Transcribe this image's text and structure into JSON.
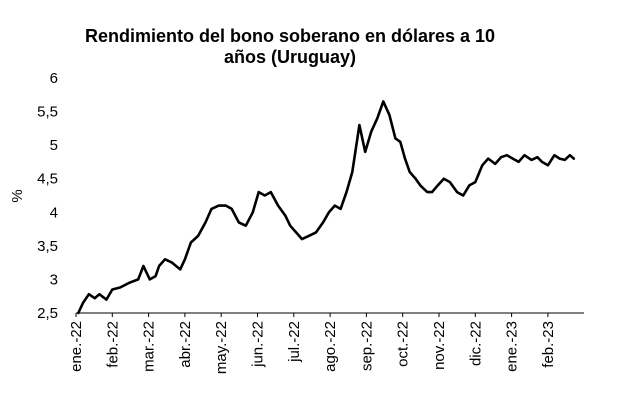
{
  "chart_data": {
    "type": "line",
    "title_line1": "Rendimiento del bono soberano en dólares a 10",
    "title_line2": "años (Uruguay)",
    "ylabel": "%",
    "ylim": [
      2.5,
      6
    ],
    "y_ticks": [
      "6",
      "5,5",
      "5",
      "4,5",
      "4",
      "3,5",
      "3",
      "2,5"
    ],
    "x_ticks": [
      "ene.-22",
      "feb.-22",
      "mar.-22",
      "abr.-22",
      "may.-22",
      "jun.-22",
      "jul.-22",
      "ago.-22",
      "sep.-22",
      "oct.-22",
      "nov.-22",
      "dic.-22",
      "ene.-23",
      "feb.-23"
    ],
    "grid": false,
    "series": [
      {
        "color": "#000000",
        "x": [
          "2022-01-03",
          "2022-01-07",
          "2022-01-12",
          "2022-01-17",
          "2022-01-21",
          "2022-01-27",
          "2022-02-01",
          "2022-02-07",
          "2022-02-14",
          "2022-02-21",
          "2022-02-25",
          "2022-03-02",
          "2022-03-07",
          "2022-03-10",
          "2022-03-15",
          "2022-03-21",
          "2022-03-28",
          "2022-04-01",
          "2022-04-06",
          "2022-04-12",
          "2022-04-18",
          "2022-04-23",
          "2022-04-29",
          "2022-05-05",
          "2022-05-10",
          "2022-05-16",
          "2022-05-22",
          "2022-05-28",
          "2022-06-02",
          "2022-06-07",
          "2022-06-12",
          "2022-06-18",
          "2022-06-24",
          "2022-06-28",
          "2022-07-03",
          "2022-07-08",
          "2022-07-14",
          "2022-07-20",
          "2022-07-26",
          "2022-07-31",
          "2022-08-05",
          "2022-08-10",
          "2022-08-15",
          "2022-08-20",
          "2022-08-26",
          "2022-08-31",
          "2022-09-05",
          "2022-09-10",
          "2022-09-15",
          "2022-09-20",
          "2022-09-25",
          "2022-09-29",
          "2022-10-03",
          "2022-10-07",
          "2022-10-12",
          "2022-10-16",
          "2022-10-19",
          "2022-10-22",
          "2022-10-26",
          "2022-10-31",
          "2022-11-05",
          "2022-11-10",
          "2022-11-16",
          "2022-11-21",
          "2022-11-26",
          "2022-12-01",
          "2022-12-07",
          "2022-12-12",
          "2022-12-18",
          "2022-12-23",
          "2022-12-28",
          "2023-01-02",
          "2023-01-07",
          "2023-01-12",
          "2023-01-18",
          "2023-01-23",
          "2023-01-27",
          "2023-02-01",
          "2023-02-06",
          "2023-02-10",
          "2023-02-14",
          "2023-02-18",
          "2023-02-21"
        ],
        "y": [
          2.5,
          2.65,
          2.78,
          2.72,
          2.78,
          2.7,
          2.85,
          2.88,
          2.95,
          3.0,
          3.2,
          3.0,
          3.05,
          3.2,
          3.3,
          3.25,
          3.15,
          3.3,
          3.55,
          3.65,
          3.85,
          4.05,
          4.1,
          4.1,
          4.05,
          3.85,
          3.8,
          4.0,
          4.3,
          4.25,
          4.3,
          4.1,
          3.95,
          3.8,
          3.7,
          3.6,
          3.65,
          3.7,
          3.85,
          4.0,
          4.1,
          4.05,
          4.3,
          4.6,
          5.3,
          4.9,
          5.2,
          5.4,
          5.65,
          5.45,
          5.1,
          5.05,
          4.8,
          4.6,
          4.5,
          4.4,
          4.35,
          4.3,
          4.3,
          4.4,
          4.5,
          4.45,
          4.3,
          4.25,
          4.4,
          4.45,
          4.7,
          4.8,
          4.72,
          4.82,
          4.85,
          4.8,
          4.75,
          4.85,
          4.78,
          4.82,
          4.75,
          4.7,
          4.85,
          4.8,
          4.78,
          4.85,
          4.8
        ]
      }
    ]
  }
}
